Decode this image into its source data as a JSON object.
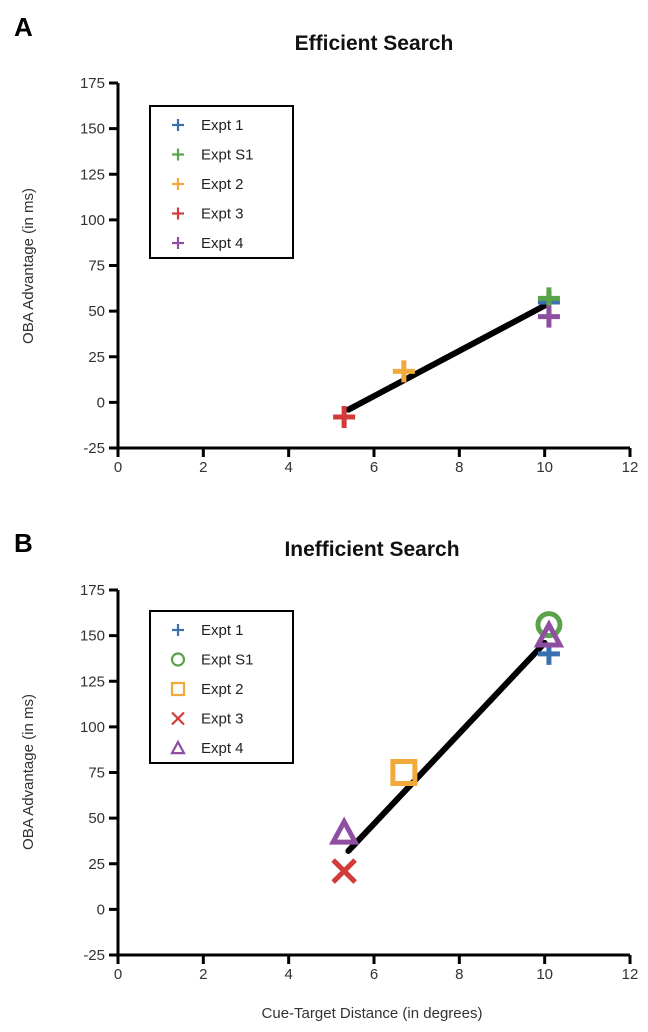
{
  "panels": [
    {
      "letter": "A",
      "title": "Efficient Search",
      "ylabel": "OBA Advantage (in ms)",
      "xlabel": "",
      "x_ticks": [
        "0",
        "2",
        "4",
        "6",
        "8",
        "10",
        "12"
      ],
      "y_ticks": [
        "-25",
        "0",
        "25",
        "50",
        "75",
        "100",
        "125",
        "150",
        "175"
      ],
      "legend": [
        {
          "label": "Expt 1",
          "marker": "plus",
          "color": "#3a6fb0"
        },
        {
          "label": "Expt S1",
          "marker": "plus",
          "color": "#5aa34a"
        },
        {
          "label": "Expt 2",
          "marker": "plus",
          "color": "#f2a93b"
        },
        {
          "label": "Expt 3",
          "marker": "plus",
          "color": "#d33b3b"
        },
        {
          "label": "Expt 4",
          "marker": "plus",
          "color": "#8e4fa0"
        }
      ]
    },
    {
      "letter": "B",
      "title": "Inefficient Search",
      "ylabel": "OBA Advantage (in ms)",
      "xlabel": "Cue-Target Distance (in degrees)",
      "x_ticks": [
        "0",
        "2",
        "4",
        "6",
        "8",
        "10",
        "12"
      ],
      "y_ticks": [
        "-25",
        "0",
        "25",
        "50",
        "75",
        "100",
        "125",
        "150",
        "175"
      ],
      "legend": [
        {
          "label": "Expt 1",
          "marker": "plus",
          "color": "#3a6fb0"
        },
        {
          "label": "Expt S1",
          "marker": "circle",
          "color": "#5aa34a"
        },
        {
          "label": "Expt 2",
          "marker": "square",
          "color": "#f2a93b"
        },
        {
          "label": "Expt 3",
          "marker": "cross",
          "color": "#d33b3b"
        },
        {
          "label": "Expt 4",
          "marker": "triangle",
          "color": "#8e4fa0"
        }
      ]
    }
  ],
  "chart_data": [
    {
      "type": "scatter",
      "title": "Efficient Search",
      "xlabel": "",
      "ylabel": "OBA Advantage (in ms)",
      "xlim": [
        0,
        12
      ],
      "ylim": [
        -25,
        175
      ],
      "grid": false,
      "legend_position": "top-left",
      "series": [
        {
          "name": "Expt 1",
          "marker": "plus",
          "color": "#3a6fb0",
          "x": [
            10.1
          ],
          "y": [
            55
          ]
        },
        {
          "name": "Expt S1",
          "marker": "plus",
          "color": "#5aa34a",
          "x": [
            10.1
          ],
          "y": [
            57
          ]
        },
        {
          "name": "Expt 2",
          "marker": "plus",
          "color": "#f2a93b",
          "x": [
            6.7
          ],
          "y": [
            17
          ]
        },
        {
          "name": "Expt 3",
          "marker": "plus",
          "color": "#d33b3b",
          "x": [
            5.3
          ],
          "y": [
            -8
          ]
        },
        {
          "name": "Expt 4",
          "marker": "plus",
          "color": "#8e4fa0",
          "x": [
            10.1
          ],
          "y": [
            47
          ]
        }
      ],
      "fit_line": {
        "x": [
          5.4,
          10.0
        ],
        "y": [
          -4,
          53
        ],
        "color": "#000000"
      }
    },
    {
      "type": "scatter",
      "title": "Inefficient Search",
      "xlabel": "Cue-Target Distance (in degrees)",
      "ylabel": "OBA Advantage (in ms)",
      "xlim": [
        0,
        12
      ],
      "ylim": [
        -25,
        175
      ],
      "grid": false,
      "legend_position": "top-left",
      "series": [
        {
          "name": "Expt 1",
          "marker": "plus",
          "color": "#3a6fb0",
          "x": [
            10.1
          ],
          "y": [
            140
          ]
        },
        {
          "name": "Expt S1",
          "marker": "circle",
          "color": "#5aa34a",
          "x": [
            10.1
          ],
          "y": [
            156
          ]
        },
        {
          "name": "Expt 2",
          "marker": "square",
          "color": "#f2a93b",
          "x": [
            6.7
          ],
          "y": [
            75
          ]
        },
        {
          "name": "Expt 3",
          "marker": "cross",
          "color": "#d33b3b",
          "x": [
            5.3
          ],
          "y": [
            21
          ]
        },
        {
          "name": "Expt 4",
          "marker": "triangle",
          "color": "#8e4fa0",
          "x": [
            10.1
          ],
          "y": [
            150
          ]
        },
        {
          "name": "Expt 4",
          "marker": "triangle",
          "color": "#8e4fa0",
          "x": [
            5.3
          ],
          "y": [
            42
          ]
        }
      ],
      "fit_line": {
        "x": [
          5.4,
          10.0
        ],
        "y": [
          32,
          146
        ],
        "color": "#000000"
      }
    }
  ]
}
